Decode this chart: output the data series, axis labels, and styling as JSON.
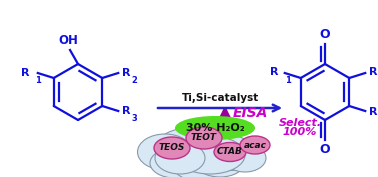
{
  "bg_color": "#ffffff",
  "cloud_fill": "#d8e8f4",
  "cloud_stroke": "#8899aa",
  "bubble_fill": "#e088b8",
  "bubble_stroke": "#bb3388",
  "blue_color": "#1010dd",
  "magenta_color": "#cc00cc",
  "green_fill": "#55dd22",
  "arrow_vert_color": "#990099",
  "arrow_horiz_color": "#2222cc",
  "text_black": "#111111",
  "eisa_text": "EISA",
  "catalyst_text": "Ti,Si-catalyst",
  "h2o2_text": "30% H₂O₂",
  "select_line1": "Select.",
  "select_line2": "100%"
}
